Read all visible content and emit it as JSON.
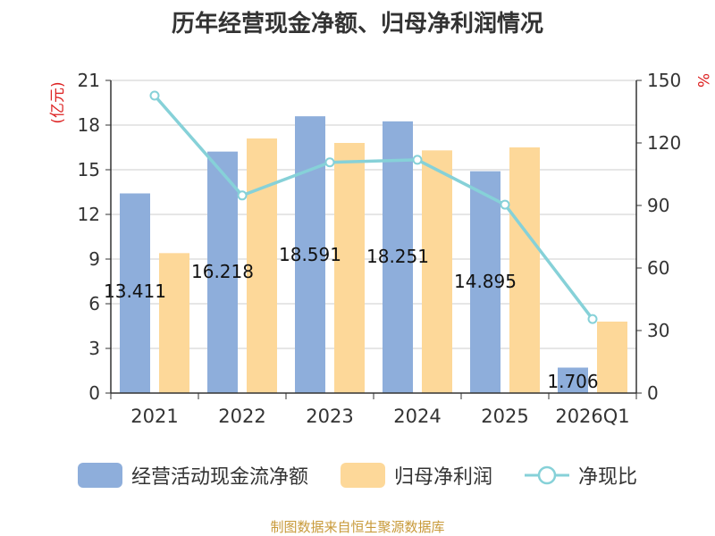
{
  "chart_data": {
    "type": "bar",
    "title": "历年经营现金净额、归母净利润情况",
    "categories": [
      "2021",
      "2022",
      "2023",
      "2024",
      "2025",
      "2026Q1"
    ],
    "series": [
      {
        "name": "经营活动现金流净额",
        "kind": "bar",
        "axis": "left",
        "color": "#8eaedb",
        "values": [
          13.41,
          16.22,
          18.59,
          18.25,
          14.9,
          1.71
        ]
      },
      {
        "name": "归母净利润",
        "kind": "bar",
        "axis": "left",
        "color": "#fdd899",
        "values": [
          9.4,
          17.1,
          16.8,
          16.3,
          16.5,
          4.8
        ]
      },
      {
        "name": "净现比",
        "kind": "line",
        "axis": "right",
        "color": "#86d1d8",
        "values": [
          142.7,
          94.8,
          110.7,
          111.9,
          90.4,
          35.5
        ]
      }
    ],
    "data_labels": [
      "13.411",
      "16.218",
      "18.591",
      "18.251",
      "14.895",
      "1.706"
    ],
    "ylabel_left": "(亿元)",
    "ylabel_right": "%",
    "ylim_left": [
      0,
      21
    ],
    "ylim_right": [
      0,
      150
    ],
    "yticks_left": [
      "0",
      "3",
      "6",
      "9",
      "12",
      "15",
      "18",
      "21"
    ],
    "yticks_right": [
      "0",
      "30",
      "60",
      "90",
      "120",
      "150"
    ],
    "grid": true,
    "legend": "bottom"
  },
  "legend": {
    "bar1": "经营活动现金流净额",
    "bar2": "归母净利润",
    "line": "净现比"
  },
  "source": "制图数据来自恒生聚源数据库"
}
